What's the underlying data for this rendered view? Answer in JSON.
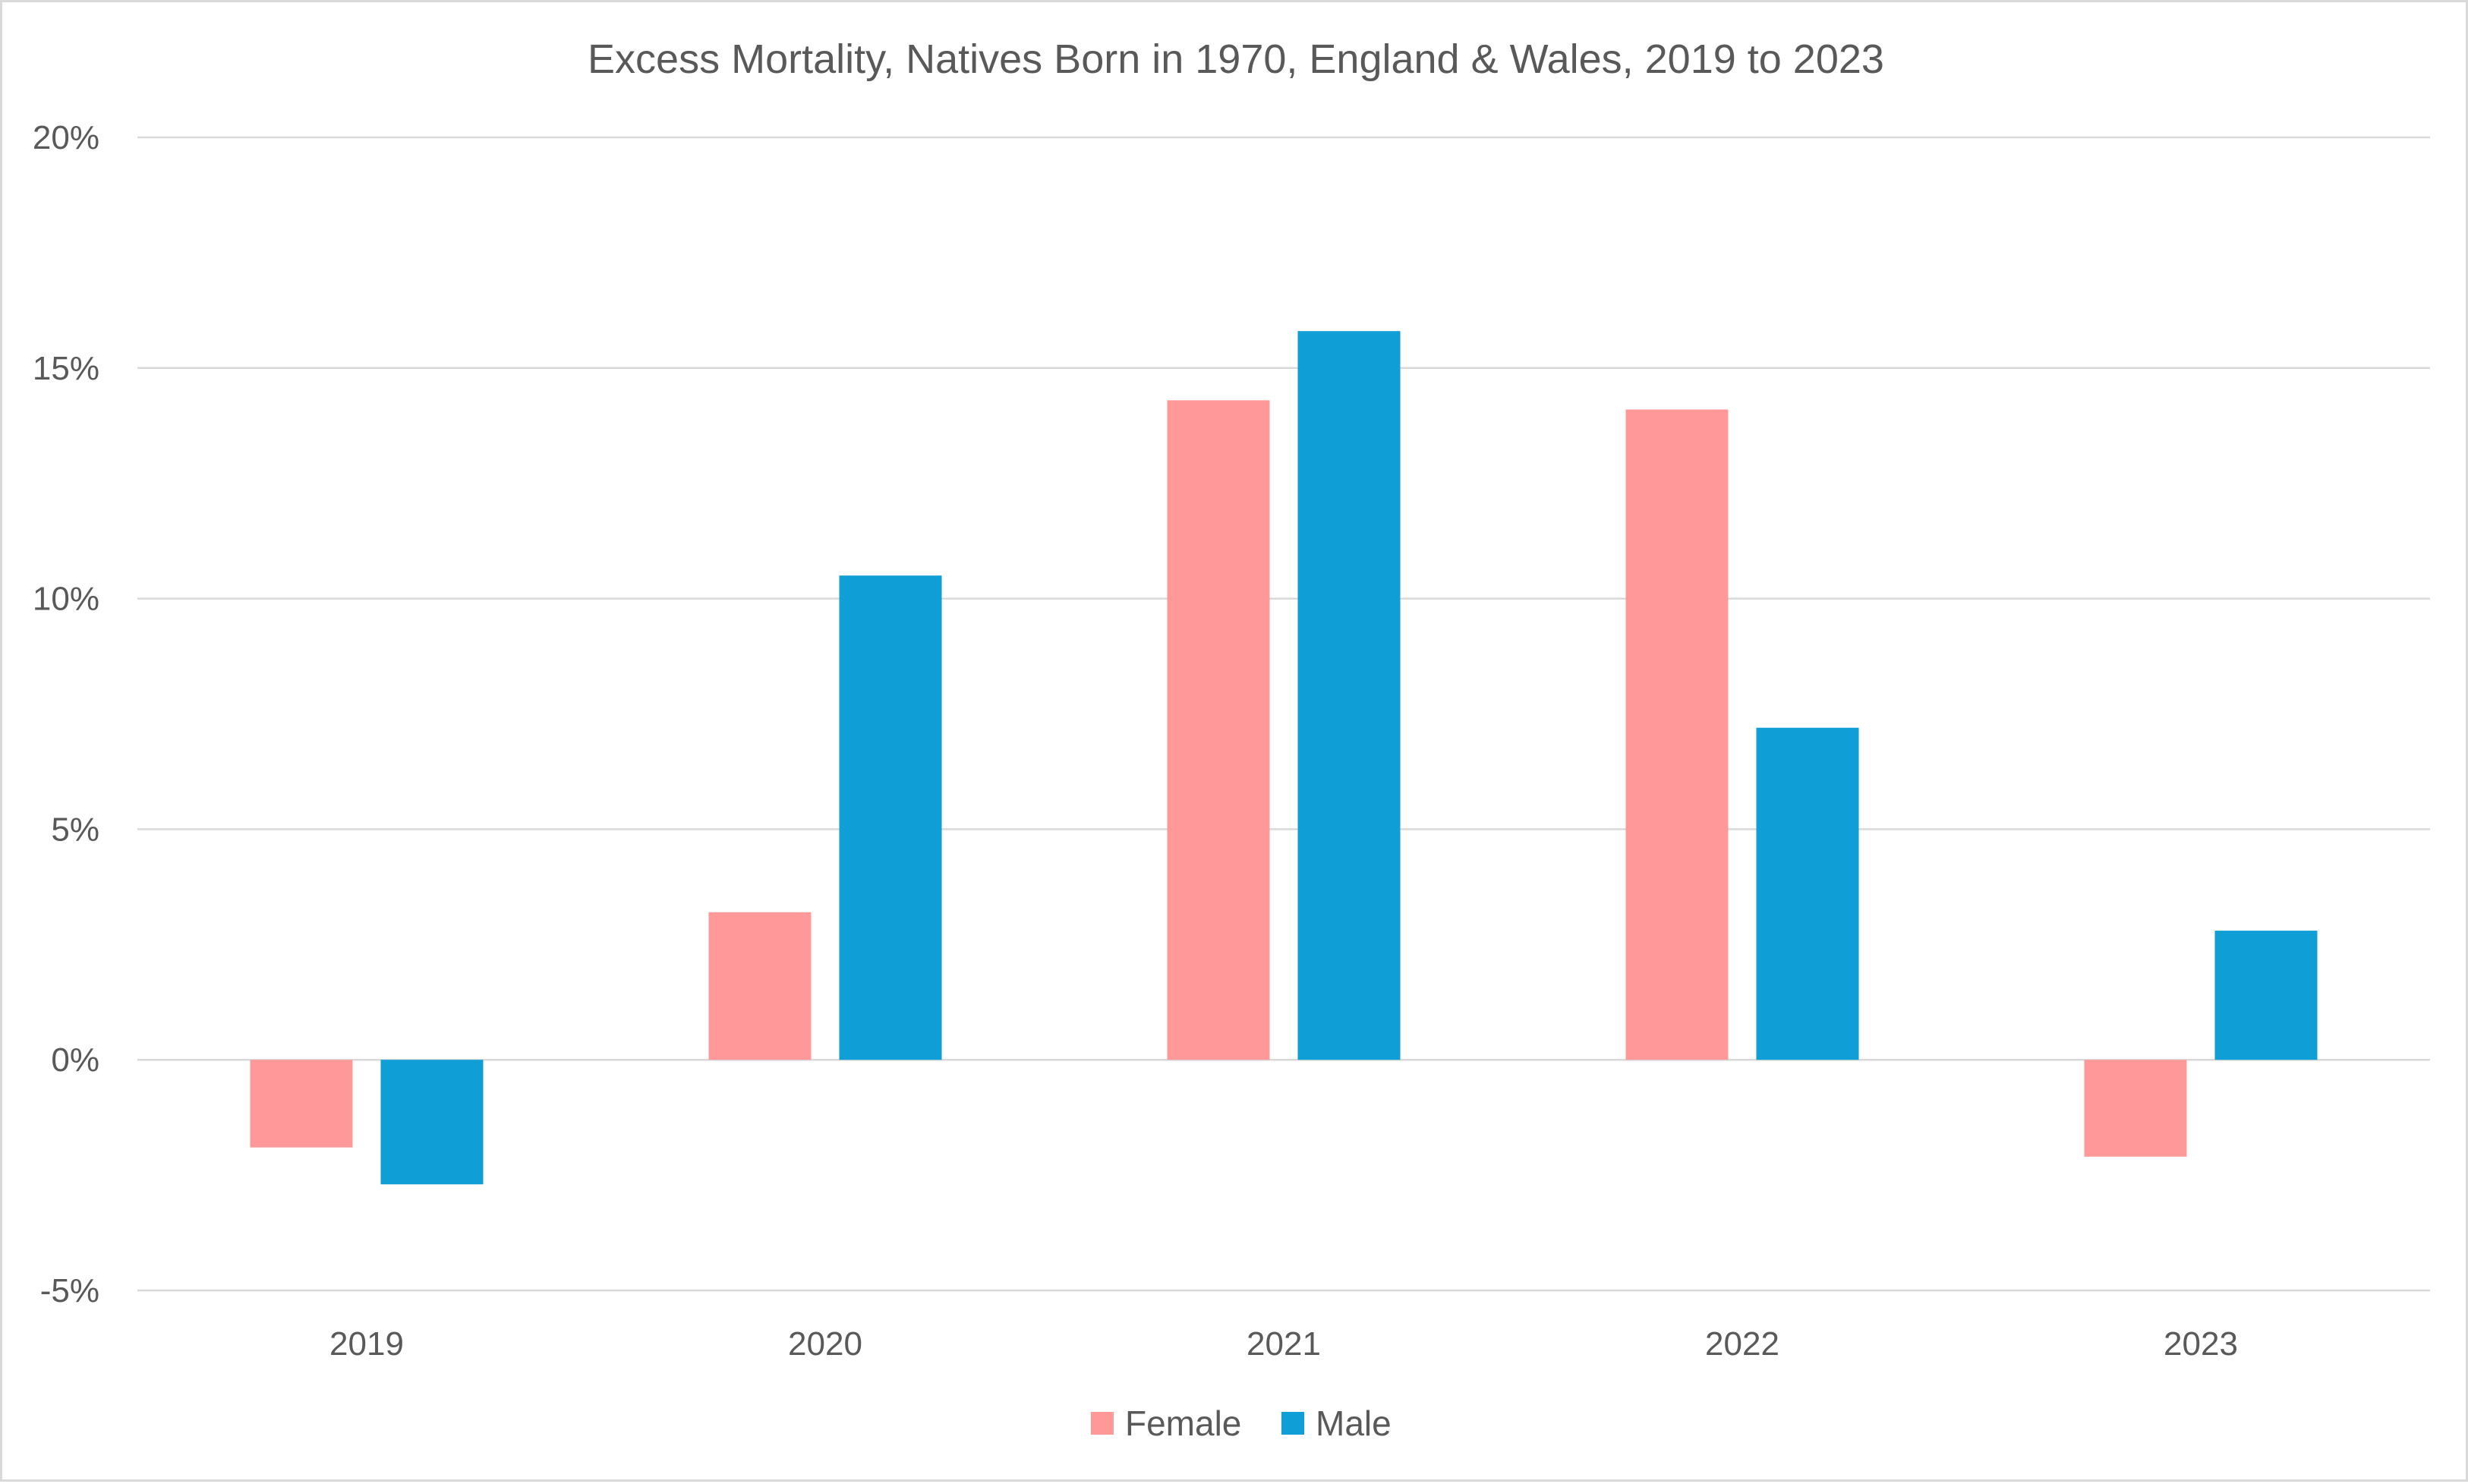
{
  "chart_data": {
    "type": "bar",
    "title": "Excess Mortality, Natives Born in 1970, England & Wales, 2019 to 2023",
    "xlabel": "",
    "ylabel": "",
    "categories": [
      "2019",
      "2020",
      "2021",
      "2022",
      "2023"
    ],
    "series": [
      {
        "name": "Female",
        "color": "#ff9999",
        "values": [
          -1.9,
          3.2,
          14.3,
          14.1,
          -2.1
        ]
      },
      {
        "name": "Male",
        "color": "#0f9ed5",
        "values": [
          -2.7,
          10.5,
          15.8,
          7.2,
          2.8
        ]
      }
    ],
    "ylim": [
      -5,
      20
    ],
    "yticks": [
      {
        "value": -5,
        "label": "-5%"
      },
      {
        "value": 0,
        "label": "0%"
      },
      {
        "value": 5,
        "label": "5%"
      },
      {
        "value": 10,
        "label": "10%"
      },
      {
        "value": 15,
        "label": "15%"
      },
      {
        "value": 20,
        "label": "20%"
      }
    ],
    "grid": true,
    "legend_position": "bottom"
  }
}
